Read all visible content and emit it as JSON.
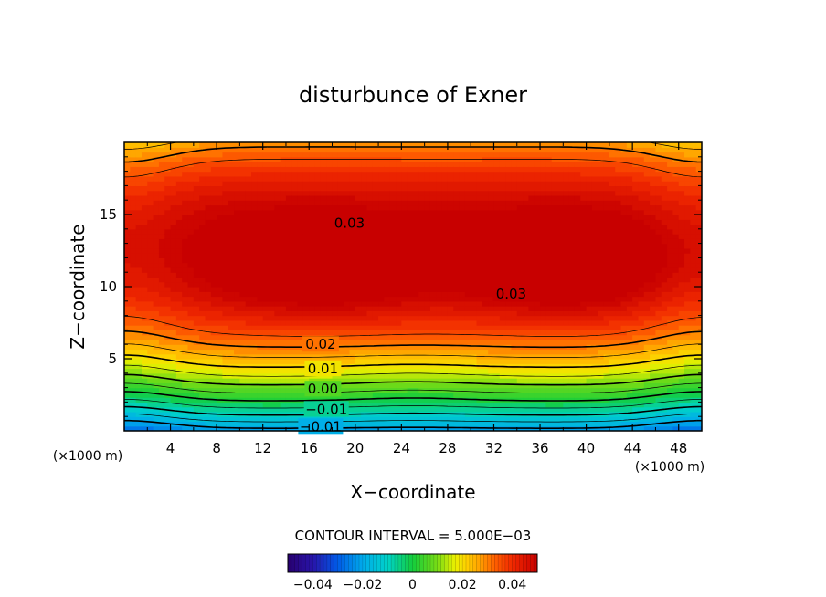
{
  "chart_data": {
    "type": "contour",
    "title": "disturbunce of Exner",
    "xlabel": "X−coordinate",
    "ylabel": "Z−coordinate",
    "x_unit_left": "(×1000 m)",
    "x_unit_right": "(×1000 m)",
    "xlim": [
      0,
      50
    ],
    "ylim": [
      0,
      20
    ],
    "x_ticks": [
      4,
      8,
      12,
      16,
      20,
      24,
      28,
      32,
      36,
      40,
      44,
      48
    ],
    "y_ticks": [
      5,
      10,
      15
    ],
    "contour_interval_text": "CONTOUR INTERVAL = 5.000E−03",
    "contour_interval": 0.005,
    "field": {
      "description": "Exner pressure perturbation; twin maxima near x=17 and x=38 (z~11.5), decreasing to negative values near ground",
      "max_approx": 0.035,
      "min_approx": -0.02
    },
    "contour_labels": [
      {
        "text": "0.03",
        "x": 19.5,
        "z": 14.4
      },
      {
        "text": "0.03",
        "x": 33.5,
        "z": 9.5
      },
      {
        "text": "0.02",
        "x": 17.0,
        "z": 6.0
      },
      {
        "text": "0.01",
        "x": 17.2,
        "z": 4.3
      },
      {
        "text": "0.00",
        "x": 17.2,
        "z": 2.9
      },
      {
        "text": "−0.01",
        "x": 17.5,
        "z": 1.5
      },
      {
        "text": "−0.01",
        "x": 17.0,
        "z": 0.3
      }
    ],
    "colorbar": {
      "range": [
        -0.05,
        0.05
      ],
      "tick_labels": [
        "−0.04",
        "−0.02",
        "0",
        "0.02",
        "0.04"
      ],
      "tick_values": [
        -0.04,
        -0.02,
        0,
        0.02,
        0.04
      ]
    }
  }
}
